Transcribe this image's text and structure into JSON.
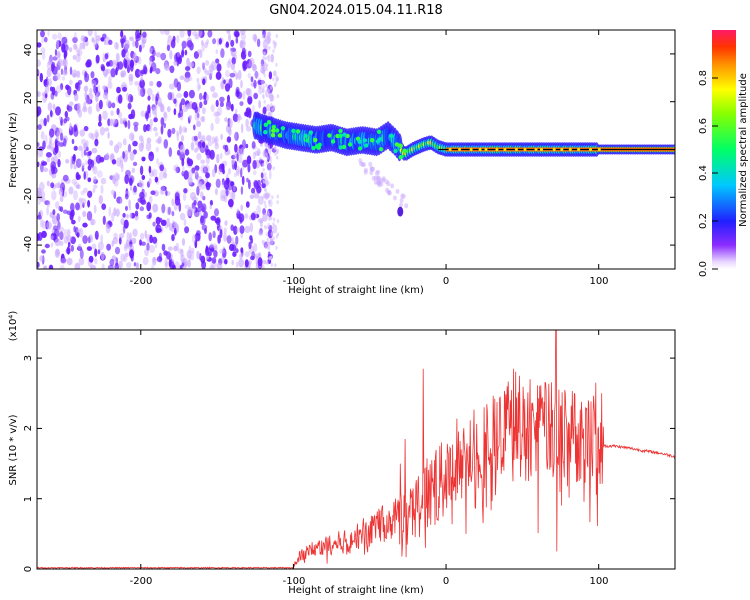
{
  "title": "GN04.2024.015.04.11.R18",
  "top_panel": {
    "xlabel": "Height of straight line (km)",
    "ylabel": "Frequency (Hz)",
    "xticks": [
      "-200",
      "-100",
      "0",
      "100"
    ],
    "yticks": [
      "40",
      "20",
      "0",
      "-20",
      "-40"
    ]
  },
  "colorbar": {
    "label": "Normalized spectral amplitude",
    "ticks": [
      "0.0",
      "0.2",
      "0.4",
      "0.6",
      "0.8"
    ]
  },
  "bottom_panel": {
    "xlabel": "Height of straight line (km)",
    "ylabel": "SNR (10 * v/v)",
    "yunit": "(x10⁴)",
    "xticks": [
      "-200",
      "-100",
      "0",
      "100"
    ],
    "yticks": [
      "3",
      "2",
      "1",
      "0"
    ]
  },
  "colors": {
    "snr_line": "#ee3333",
    "scatter": "#6a1cff",
    "center_line": "#000000"
  },
  "chart_data": [
    {
      "type": "heatmap",
      "title": "GN04.2024.015.04.11.R18",
      "xlabel": "Height of straight line (km)",
      "ylabel": "Frequency (Hz)",
      "xlim": [
        -268,
        150
      ],
      "ylim": [
        -50,
        50
      ],
      "zlim": [
        0,
        1
      ],
      "colorbar_label": "Normalized spectral amplitude",
      "features": [
        {
          "x_range": [
            -268,
            -118
          ],
          "description_freq_range": [
            -50,
            50
          ],
          "amplitude": 0.1
        },
        {
          "x_range": [
            -125,
            -100
          ],
          "freq_center": 8,
          "freq_spread": 6,
          "amplitude": 0.35
        },
        {
          "x_range": [
            -100,
            -30
          ],
          "freq_center": 4,
          "freq_spread": 4,
          "amplitude": 0.4
        },
        {
          "x_range": [
            -30,
            100
          ],
          "freq_center": 0,
          "freq_spread": 2,
          "amplitude": 0.6
        },
        {
          "x_range": [
            100,
            150
          ],
          "freq_center": 0,
          "freq_spread": 1,
          "amplitude": 0.8
        }
      ],
      "ridge": [
        [
          -125,
          10
        ],
        [
          -115,
          8
        ],
        [
          -105,
          6
        ],
        [
          -95,
          5
        ],
        [
          -85,
          4
        ],
        [
          -75,
          5
        ],
        [
          -65,
          3
        ],
        [
          -55,
          4
        ],
        [
          -45,
          3
        ],
        [
          -38,
          6
        ],
        [
          -33,
          3
        ],
        [
          -27,
          -2
        ],
        [
          -22,
          0
        ],
        [
          -15,
          2
        ],
        [
          -10,
          3
        ],
        [
          -5,
          1
        ],
        [
          0,
          0
        ],
        [
          20,
          0
        ],
        [
          40,
          0
        ],
        [
          60,
          0
        ],
        [
          80,
          0
        ],
        [
          100,
          0
        ],
        [
          120,
          0
        ],
        [
          150,
          0
        ]
      ]
    },
    {
      "type": "line",
      "xlabel": "Height of straight line (km)",
      "ylabel": "SNR (10 * v/v)",
      "yunit": "x10^4",
      "xlim": [
        -268,
        150
      ],
      "ylim": [
        0,
        3.4
      ],
      "envelope": [
        [
          -268,
          0.0
        ],
        [
          -120,
          0.0
        ],
        [
          -100,
          0.05
        ],
        [
          -95,
          0.2
        ],
        [
          -85,
          0.3
        ],
        [
          -75,
          0.35
        ],
        [
          -65,
          0.4
        ],
        [
          -55,
          0.5
        ],
        [
          -45,
          0.6
        ],
        [
          -35,
          0.7
        ],
        [
          -25,
          0.8
        ],
        [
          -15,
          1.0
        ],
        [
          -5,
          1.2
        ],
        [
          0,
          1.3
        ],
        [
          10,
          1.5
        ],
        [
          20,
          1.7
        ],
        [
          30,
          1.85
        ],
        [
          40,
          1.9
        ],
        [
          50,
          1.95
        ],
        [
          60,
          1.95
        ],
        [
          70,
          1.95
        ],
        [
          80,
          1.9
        ],
        [
          90,
          1.9
        ],
        [
          100,
          1.85
        ],
        [
          103,
          1.75
        ],
        [
          110,
          1.75
        ],
        [
          120,
          1.72
        ],
        [
          130,
          1.68
        ],
        [
          140,
          1.65
        ],
        [
          150,
          1.6
        ]
      ],
      "spikes": [
        [
          -30,
          1.5
        ],
        [
          -27,
          1.85
        ],
        [
          -15,
          2.85
        ],
        [
          -3,
          1.8
        ],
        [
          10,
          1.7
        ],
        [
          25,
          2.3
        ],
        [
          40,
          2.6
        ],
        [
          48,
          2.75
        ],
        [
          55,
          2.7
        ],
        [
          65,
          2.65
        ],
        [
          72,
          3.4
        ],
        [
          72.5,
          0.25
        ],
        [
          80,
          2.0
        ],
        [
          90,
          2.0
        ],
        [
          98,
          2.65
        ],
        [
          102,
          2.5
        ]
      ]
    }
  ]
}
